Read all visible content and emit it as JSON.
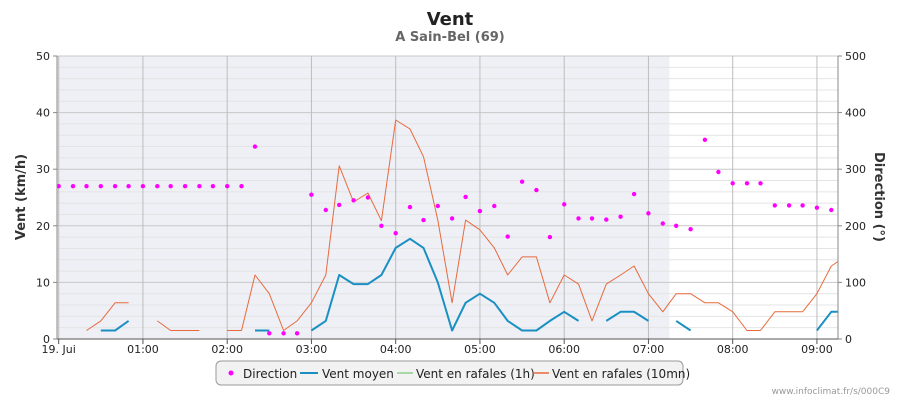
{
  "header": {
    "title": "Vent",
    "subtitle": "A Sain-Bel (69)"
  },
  "credit": "www.infoclimat.fr/s/000C9",
  "chart_data": {
    "type": "line",
    "title": "Vent",
    "subtitle": "A Sain-Bel (69)",
    "ylabel_left": "Vent (km/h)",
    "ylabel_right": "Direction (°)",
    "ylim_left": [
      0,
      50
    ],
    "ylim_right": [
      0,
      500
    ],
    "yticks_left": [
      "0",
      "10",
      "20",
      "30",
      "40",
      "50"
    ],
    "yticks_right": [
      "0",
      "100",
      "200",
      "300",
      "400",
      "500"
    ],
    "x_range_hours": [
      -0.02,
      9.25
    ],
    "x_ticks": [
      {
        "label": "19. Jui",
        "h": 0
      },
      {
        "label": "01:00",
        "h": 1
      },
      {
        "label": "02:00",
        "h": 2
      },
      {
        "label": "03:00",
        "h": 3
      },
      {
        "label": "04:00",
        "h": 4
      },
      {
        "label": "05:00",
        "h": 5
      },
      {
        "label": "06:00",
        "h": 6
      },
      {
        "label": "07:00",
        "h": 7
      },
      {
        "label": "08:00",
        "h": 8
      },
      {
        "label": "09:00",
        "h": 9
      }
    ],
    "night_band_hours": [
      -0.02,
      7.25
    ],
    "grid": true,
    "legend_position": "bottom",
    "colors": {
      "direction": "#ff00ff",
      "moyen": "#1a8fc4",
      "rafales1h": "#8fd08f",
      "rafales10": "#e86a3c",
      "night": "#eef0f6"
    },
    "series": [
      {
        "name": "Direction",
        "axis": "right",
        "kind": "scatter",
        "points": [
          [
            0,
            270
          ],
          [
            0.17,
            270
          ],
          [
            0.33,
            270
          ],
          [
            0.5,
            270
          ],
          [
            0.67,
            270
          ],
          [
            0.83,
            270
          ],
          [
            1,
            270
          ],
          [
            1.17,
            270
          ],
          [
            1.33,
            270
          ],
          [
            1.5,
            270
          ],
          [
            1.67,
            270
          ],
          [
            1.83,
            270
          ],
          [
            2,
            270
          ],
          [
            2.17,
            270
          ],
          [
            2.33,
            340
          ],
          [
            2.5,
            10
          ],
          [
            2.67,
            10
          ],
          [
            2.83,
            10
          ],
          [
            3,
            255
          ],
          [
            3.17,
            228
          ],
          [
            3.33,
            237
          ],
          [
            3.5,
            245
          ],
          [
            3.67,
            250
          ],
          [
            3.83,
            200
          ],
          [
            4,
            187
          ],
          [
            4.17,
            233
          ],
          [
            4.33,
            210
          ],
          [
            4.5,
            235
          ],
          [
            4.67,
            213
          ],
          [
            4.83,
            251
          ],
          [
            5,
            226
          ],
          [
            5.17,
            235
          ],
          [
            5.33,
            181
          ],
          [
            5.5,
            278
          ],
          [
            5.67,
            263
          ],
          [
            5.83,
            180
          ],
          [
            6,
            238
          ],
          [
            6.17,
            213
          ],
          [
            6.33,
            213
          ],
          [
            6.5,
            211
          ],
          [
            6.67,
            216
          ],
          [
            6.83,
            256
          ],
          [
            7,
            222
          ],
          [
            7.17,
            204
          ],
          [
            7.33,
            200
          ],
          [
            7.5,
            194
          ],
          [
            7.67,
            352
          ],
          [
            7.83,
            295
          ],
          [
            8,
            275
          ],
          [
            8.17,
            275
          ],
          [
            8.33,
            275
          ],
          [
            8.5,
            236
          ],
          [
            8.67,
            236
          ],
          [
            8.83,
            236
          ],
          [
            9,
            232
          ],
          [
            9.17,
            228
          ]
        ]
      },
      {
        "name": "Vent moyen",
        "axis": "left",
        "kind": "line",
        "segments": [
          [
            [
              0.5,
              1.5
            ],
            [
              0.67,
              1.5
            ],
            [
              0.83,
              3.2
            ]
          ],
          [
            [
              2.33,
              1.5
            ],
            [
              2.5,
              1.5
            ]
          ],
          [
            [
              3,
              1.5
            ],
            [
              3.17,
              3.2
            ],
            [
              3.33,
              11.3
            ],
            [
              3.5,
              9.7
            ],
            [
              3.67,
              9.7
            ],
            [
              3.83,
              11.3
            ],
            [
              4,
              16.1
            ],
            [
              4.17,
              17.7
            ],
            [
              4.33,
              16.1
            ],
            [
              4.5,
              10
            ],
            [
              4.67,
              1.5
            ],
            [
              4.83,
              6.4
            ],
            [
              5,
              8
            ],
            [
              5.17,
              6.4
            ],
            [
              5.33,
              3.2
            ],
            [
              5.5,
              1.5
            ],
            [
              5.67,
              1.5
            ],
            [
              5.83,
              3.2
            ],
            [
              6,
              4.8
            ],
            [
              6.17,
              3.2
            ]
          ],
          [
            [
              6.5,
              3.2
            ],
            [
              6.67,
              4.8
            ],
            [
              6.83,
              4.8
            ],
            [
              7,
              3.2
            ]
          ],
          [
            [
              7.33,
              3.2
            ],
            [
              7.5,
              1.5
            ]
          ],
          [
            [
              9,
              1.5
            ],
            [
              9.17,
              4.8
            ],
            [
              9.25,
              4.8
            ]
          ]
        ]
      },
      {
        "name": "Vent en rafales (1h)",
        "axis": "left",
        "kind": "line",
        "segments": []
      },
      {
        "name": "Vent en rafales (10mn)",
        "axis": "left",
        "kind": "line",
        "segments": [
          [
            [
              0.33,
              1.5
            ],
            [
              0.5,
              3.2
            ],
            [
              0.67,
              6.4
            ],
            [
              0.83,
              6.4
            ]
          ],
          [
            [
              1.17,
              3.2
            ],
            [
              1.33,
              1.5
            ],
            [
              1.5,
              1.5
            ],
            [
              1.67,
              1.5
            ]
          ],
          [
            [
              2,
              1.5
            ],
            [
              2.17,
              1.5
            ],
            [
              2.33,
              11.3
            ],
            [
              2.5,
              8
            ],
            [
              2.67,
              1.5
            ],
            [
              2.83,
              3.2
            ],
            [
              3,
              6.4
            ],
            [
              3.17,
              11.3
            ],
            [
              3.33,
              30.6
            ],
            [
              3.5,
              24.2
            ],
            [
              3.67,
              25.8
            ],
            [
              3.83,
              20.9
            ],
            [
              4,
              38.7
            ],
            [
              4.17,
              37.1
            ],
            [
              4.33,
              32.2
            ],
            [
              4.5,
              21
            ],
            [
              4.67,
              6.4
            ],
            [
              4.83,
              21
            ],
            [
              5,
              19.3
            ],
            [
              5.17,
              16.1
            ],
            [
              5.33,
              11.3
            ],
            [
              5.5,
              14.5
            ],
            [
              5.67,
              14.5
            ],
            [
              5.83,
              6.4
            ],
            [
              6,
              11.3
            ],
            [
              6.17,
              9.7
            ],
            [
              6.33,
              3.2
            ],
            [
              6.5,
              9.7
            ],
            [
              6.67,
              11.3
            ],
            [
              6.83,
              12.9
            ],
            [
              7,
              8
            ],
            [
              7.17,
              4.8
            ],
            [
              7.33,
              8
            ],
            [
              7.5,
              8
            ],
            [
              7.67,
              6.4
            ],
            [
              7.83,
              6.4
            ],
            [
              8,
              4.8
            ],
            [
              8.17,
              1.5
            ],
            [
              8.33,
              1.5
            ],
            [
              8.5,
              4.8
            ],
            [
              8.67,
              4.8
            ],
            [
              8.83,
              4.8
            ],
            [
              9,
              8
            ],
            [
              9.17,
              12.9
            ],
            [
              9.25,
              13.7
            ]
          ]
        ]
      }
    ]
  }
}
